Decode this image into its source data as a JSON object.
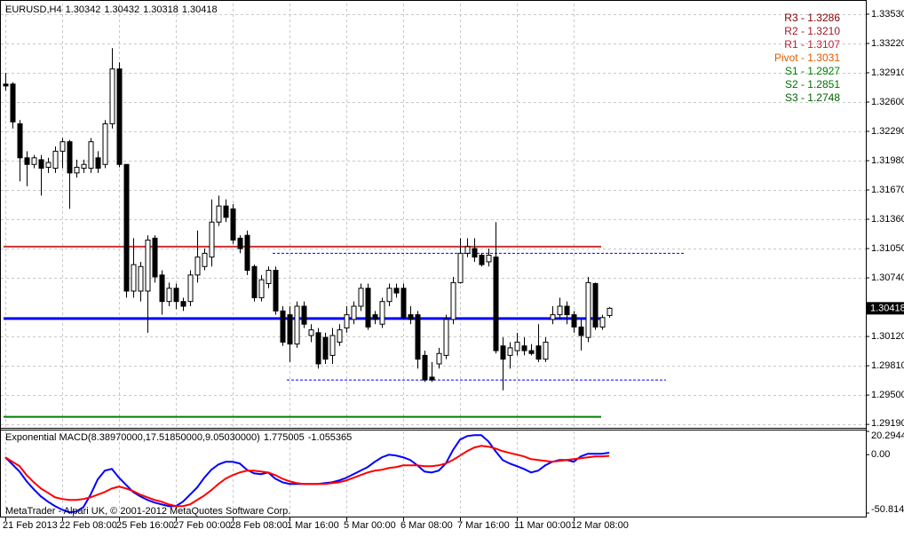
{
  "chart_data": [
    {
      "type": "candlestick",
      "title": "EURUSD,H4",
      "categories": [
        "21 Feb 2013",
        null,
        null,
        null,
        null,
        null,
        null,
        null,
        "22 Feb 08:00",
        null,
        null,
        null,
        null,
        null,
        null,
        null,
        "25 Feb 16:00",
        null,
        null,
        null,
        null,
        null,
        null,
        null,
        "27 Feb 00:00",
        null,
        null,
        null,
        null,
        null,
        null,
        null,
        "28 Feb 08:00",
        null,
        null,
        null,
        null,
        null,
        null,
        null,
        "1 Mar 16:00",
        null,
        null,
        null,
        null,
        null,
        null,
        null,
        "5 Mar 00:00",
        null,
        null,
        null,
        null,
        null,
        null,
        null,
        "6 Mar 08:00",
        null,
        null,
        null,
        null,
        null,
        null,
        null,
        "7 Mar 16:00",
        null,
        null,
        null,
        null,
        null,
        null,
        null,
        "11 Mar 00:00",
        null,
        null,
        null,
        null,
        null,
        null,
        null,
        "12 Mar 08:00",
        null,
        null,
        null,
        null,
        null
      ],
      "open": [
        1.3279,
        1.3279,
        1.3237,
        1.3201,
        1.3194,
        1.3199,
        1.3191,
        1.319,
        1.3208,
        1.3218,
        1.3185,
        1.319,
        1.319,
        1.3201,
        1.3194,
        1.3237,
        1.3295,
        1.3194,
        1.306,
        1.306,
        1.306,
        1.3116,
        1.3077,
        1.3049,
        1.3063,
        1.3049,
        1.3049,
        1.3077,
        1.3086,
        1.3096,
        1.3133,
        1.315,
        1.3147,
        1.3116,
        1.3119,
        1.3086,
        1.3053,
        1.3068,
        1.3082,
        1.3039,
        1.3035,
        1.3004,
        1.3044,
        1.3013,
        1.3016,
        1.3011,
        1.2992,
        1.3006,
        1.3021,
        1.303,
        1.3044,
        1.3063,
        1.3035,
        1.3025,
        1.3049,
        1.3063,
        1.3063,
        1.3035,
        1.3035,
        1.2992,
        1.2969,
        1.2983,
        1.2992,
        1.303,
        1.3069,
        1.31,
        1.3105,
        1.3098,
        1.3091,
        1.3096,
        1.3002,
        1.2992,
        1.2997,
        1.3002,
        1.2997,
        1.3002,
        1.2988,
        1.303,
        1.3035,
        1.3044,
        1.3035,
        1.3022,
        1.3011,
        1.3068,
        1.3022,
        1.30342
      ],
      "high": [
        1.3291,
        1.3281,
        1.3241,
        1.3208,
        1.3204,
        1.3204,
        1.3201,
        1.3213,
        1.3222,
        1.322,
        1.3199,
        1.3199,
        1.3222,
        1.3208,
        1.3241,
        1.3317,
        1.3302,
        1.3194,
        1.3116,
        1.3091,
        1.3119,
        1.3119,
        1.3082,
        1.3069,
        1.3068,
        1.3053,
        1.3082,
        1.3124,
        1.3105,
        1.3157,
        1.3161,
        1.3157,
        1.3152,
        1.3119,
        1.3124,
        1.3088,
        1.3077,
        1.3086,
        1.3086,
        1.3044,
        1.3044,
        1.3049,
        1.3049,
        1.3025,
        1.3021,
        1.3016,
        1.3021,
        1.3025,
        1.3044,
        1.3049,
        1.3068,
        1.3068,
        1.3039,
        1.3053,
        1.3068,
        1.3068,
        1.3068,
        1.3044,
        1.3039,
        1.2997,
        1.2985,
        1.3,
        1.3035,
        1.3075,
        1.3116,
        1.3116,
        1.3116,
        1.31,
        1.3105,
        1.3133,
        1.3011,
        1.3006,
        1.3016,
        1.3011,
        1.3004,
        1.3025,
        1.3011,
        1.3044,
        1.3053,
        1.3049,
        1.3039,
        1.303,
        1.3075,
        1.3069,
        1.3035,
        1.30432
      ],
      "low": [
        1.3272,
        1.3232,
        1.3176,
        1.3171,
        1.319,
        1.3161,
        1.3185,
        1.3185,
        1.319,
        1.3147,
        1.318,
        1.3185,
        1.3185,
        1.3185,
        1.319,
        1.3232,
        1.3191,
        1.3053,
        1.3053,
        1.3049,
        1.3016,
        1.3069,
        1.3035,
        1.3044,
        1.3041,
        1.3039,
        1.3044,
        1.3069,
        1.3082,
        1.3086,
        1.3129,
        1.3133,
        1.311,
        1.31,
        1.3077,
        1.3049,
        1.3049,
        1.3063,
        1.3035,
        1.3002,
        1.2985,
        1.3,
        1.3021,
        1.3006,
        1.2978,
        1.2983,
        1.2983,
        1.3002,
        1.3016,
        1.3025,
        1.3039,
        1.3019,
        1.3025,
        1.3021,
        1.3044,
        1.3053,
        1.303,
        1.3025,
        1.2978,
        1.2964,
        1.2964,
        1.2978,
        1.2988,
        1.3025,
        1.3068,
        1.3096,
        1.3091,
        1.3086,
        1.3086,
        1.2994,
        1.2955,
        1.2978,
        1.2992,
        1.2992,
        1.2992,
        1.2985,
        1.2985,
        1.3025,
        1.303,
        1.3025,
        1.3016,
        1.2997,
        1.3006,
        1.3019,
        1.3019,
        1.30318
      ],
      "close": [
        1.3277,
        1.3239,
        1.3201,
        1.3194,
        1.3201,
        1.319,
        1.3196,
        1.3208,
        1.3218,
        1.3185,
        1.3191,
        1.3194,
        1.3218,
        1.319,
        1.3237,
        1.3295,
        1.3194,
        1.306,
        1.3088,
        1.3086,
        1.3114,
        1.3075,
        1.3049,
        1.3063,
        1.3049,
        1.3044,
        1.3077,
        1.3096,
        1.31,
        1.3133,
        1.315,
        1.3138,
        1.3114,
        1.3105,
        1.3082,
        1.3053,
        1.3072,
        1.3082,
        1.3039,
        1.3006,
        1.3004,
        1.3044,
        1.3025,
        1.3019,
        1.2983,
        1.2988,
        1.3013,
        1.3019,
        1.3035,
        1.3044,
        1.3063,
        1.3022,
        1.303,
        1.3049,
        1.3063,
        1.3058,
        1.3032,
        1.303,
        1.2988,
        1.2966,
        1.2966,
        1.2994,
        1.303,
        1.3069,
        1.31,
        1.3107,
        1.3096,
        1.3088,
        1.3098,
        1.2997,
        1.2988,
        1.3,
        1.3006,
        1.2997,
        1.2994,
        1.2988,
        1.3006,
        1.3035,
        1.3044,
        1.3035,
        1.3022,
        1.3013,
        1.3069,
        1.3022,
        1.3032,
        1.30418
      ],
      "up_color": "#ffffff",
      "down_color": "#000000",
      "ylim": [
        1.29163,
        1.33642
      ],
      "yticks": [
        {
          "value": 1.3353,
          "label": "1.33530"
        },
        {
          "value": 1.3322,
          "label": "1.33220"
        },
        {
          "value": 1.3291,
          "label": "1.32910"
        },
        {
          "value": 1.326,
          "label": "1.32600"
        },
        {
          "value": 1.3229,
          "label": "1.32290"
        },
        {
          "value": 1.3198,
          "label": "1.31980"
        },
        {
          "value": 1.3167,
          "label": "1.31670"
        },
        {
          "value": 1.3136,
          "label": "1.31360"
        },
        {
          "value": 1.3105,
          "label": "1.31050"
        },
        {
          "value": 1.3074,
          "label": "1.30740"
        },
        {
          "value": 1.3012,
          "label": "1.30120"
        },
        {
          "value": 1.2981,
          "label": "1.29810"
        },
        {
          "value": 1.295,
          "label": "1.29500"
        },
        {
          "value": 1.2919,
          "label": "1.29190"
        }
      ],
      "grid": true,
      "levels": [
        {
          "label": "R3 - 1.3286",
          "value": 1.3286,
          "color": "#800000"
        },
        {
          "label": "R2 - 1.3210",
          "value": 1.321,
          "color": "#a01828"
        },
        {
          "label": "R1 - 1.3107",
          "value": 1.3107,
          "color": "#c0203a",
          "line_color": "#c83232",
          "line_width": 2
        },
        {
          "label": "Pivot - 1.3031",
          "value": 1.3031,
          "color": "#e05a00",
          "line_color": "#0000ff",
          "line_width": 3
        },
        {
          "label": "S1 - 1.2927",
          "value": 1.2927,
          "color": "#008000",
          "line_color": "#008000",
          "line_width": 2
        },
        {
          "label": "S2 - 1.2851",
          "value": 1.2851,
          "color": "#007000"
        },
        {
          "label": "S3 - 1.2748",
          "value": 1.2748,
          "color": "#006000"
        }
      ],
      "dashed_levels": [
        1.31,
        1.2966
      ],
      "dashed_color": "#0000ff"
    },
    {
      "type": "line",
      "title": "Exponential MACD(8.38970000,17.51850000,9.05030000)",
      "series": [
        {
          "color": "#0000ff",
          "values": [
            -2.3,
            -8.5,
            -14.7,
            -23.2,
            -30.1,
            -36.3,
            -40.9,
            -44.8,
            -47.9,
            -50.2,
            -49.5,
            -45.6,
            -34.8,
            -21.6,
            -13.9,
            -12.4,
            -20.1,
            -26.3,
            -32.5,
            -36.3,
            -39.4,
            -41.7,
            -43.3,
            -44.8,
            -44.8,
            -40.9,
            -34.8,
            -28.6,
            -20.1,
            -13.1,
            -8.5,
            -6.2,
            -6.2,
            -7.7,
            -13.1,
            -16.2,
            -17.0,
            -15.5,
            -20.9,
            -24.0,
            -25.5,
            -25.5,
            -25.5,
            -25.5,
            -25.5,
            -24.7,
            -24.0,
            -22.4,
            -20.1,
            -17.0,
            -13.9,
            -10.8,
            -6.2,
            -2.3,
            0.0,
            -0.8,
            -2.3,
            -4.6,
            -9.3,
            -14.7,
            -15.5,
            -13.9,
            -7.7,
            3.9,
            13.1,
            16.2,
            17.0,
            17.0,
            11.6,
            3.1,
            -4.6,
            -7.7,
            -10.0,
            -12.4,
            -15.5,
            -13.9,
            -9.3,
            -6.2,
            -4.6,
            -4.6,
            -6.2,
            -1.5,
            0.8,
            0.8,
            0.8,
            1.775005
          ]
        },
        {
          "color": "#ff0000",
          "values": [
            -2.3,
            -6.2,
            -10.0,
            -17.8,
            -24.0,
            -29.4,
            -33.2,
            -37.1,
            -38.6,
            -39.4,
            -39.4,
            -38.6,
            -37.1,
            -34.8,
            -32.5,
            -29.4,
            -27.8,
            -29.4,
            -31.7,
            -34.8,
            -37.1,
            -39.4,
            -40.9,
            -43.3,
            -44.8,
            -44.8,
            -43.3,
            -39.4,
            -35.6,
            -30.9,
            -25.5,
            -20.9,
            -17.8,
            -15.5,
            -13.9,
            -13.9,
            -14.7,
            -15.5,
            -17.8,
            -20.9,
            -23.2,
            -24.7,
            -25.5,
            -25.5,
            -25.5,
            -25.5,
            -24.7,
            -24.0,
            -22.4,
            -20.1,
            -17.8,
            -15.5,
            -13.9,
            -13.1,
            -11.6,
            -10.8,
            -9.3,
            -9.3,
            -9.3,
            -10.0,
            -10.0,
            -9.3,
            -7.7,
            -4.6,
            -0.8,
            3.1,
            6.2,
            7.7,
            7.0,
            5.4,
            3.1,
            1.5,
            0.0,
            -1.5,
            -3.9,
            -4.6,
            -5.4,
            -6.2,
            -5.4,
            -4.6,
            -3.9,
            -3.1,
            -2.3,
            -1.5,
            -1.5,
            -1.055365
          ]
        }
      ],
      "ylim": [
        -50.8144,
        20.2944
      ],
      "yticks": [
        {
          "value": 20.2944,
          "label": "20.29440"
        },
        {
          "value": 0,
          "label": "0.00"
        },
        {
          "value": -50.8144,
          "label": "-50.81440"
        }
      ],
      "copyright": "MetaTrader - Alpari UK, © 2001-2012 MetaQuotes Software Corp."
    }
  ]
}
